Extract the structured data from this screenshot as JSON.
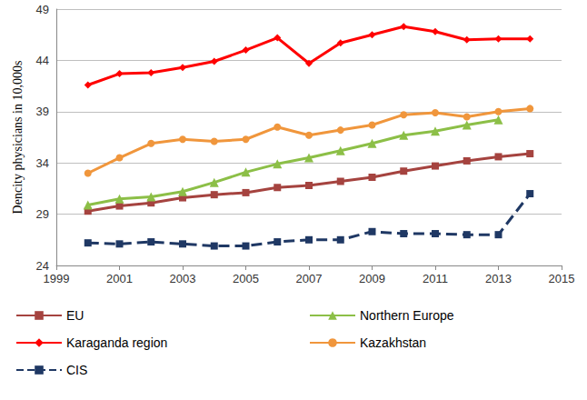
{
  "chart_data": {
    "type": "line",
    "y_label": "Dencity physicians in 10,000s",
    "x": [
      2000,
      2001,
      2002,
      2003,
      2004,
      2005,
      2006,
      2007,
      2008,
      2009,
      2010,
      2011,
      2012,
      2013,
      2014
    ],
    "xlim": [
      1999,
      2015
    ],
    "xticks": [
      1999,
      2001,
      2003,
      2005,
      2007,
      2009,
      2011,
      2013,
      2015
    ],
    "ylim": [
      24,
      49
    ],
    "yticks": [
      24,
      29,
      34,
      39,
      44,
      49
    ],
    "grid": true,
    "legend": "bottom",
    "series": [
      {
        "name": "EU",
        "color": "#a5433f",
        "marker": "square",
        "line_style": "solid",
        "values": [
          29.3,
          29.8,
          30.1,
          30.6,
          30.9,
          31.1,
          31.6,
          31.8,
          32.2,
          32.6,
          33.2,
          33.7,
          34.2,
          34.6,
          34.9
        ]
      },
      {
        "name": "Northern Europe",
        "color": "#8cbf47",
        "marker": "triangle",
        "line_style": "solid",
        "values": [
          29.9,
          30.5,
          30.7,
          31.2,
          32.1,
          33.1,
          33.9,
          34.5,
          35.2,
          35.9,
          36.7,
          37.1,
          37.7,
          38.2,
          null
        ]
      },
      {
        "name": "Karaganda region",
        "color": "#ff0000",
        "marker": "diamond",
        "line_style": "solid",
        "values": [
          41.6,
          42.7,
          42.8,
          43.3,
          43.9,
          45.0,
          46.2,
          43.7,
          45.7,
          46.5,
          47.3,
          46.8,
          46.0,
          46.1,
          46.1
        ]
      },
      {
        "name": "Kazakhstan",
        "color": "#f0963c",
        "marker": "circle",
        "line_style": "solid",
        "values": [
          33.0,
          34.5,
          35.9,
          36.3,
          36.1,
          36.3,
          37.5,
          36.7,
          37.2,
          37.7,
          38.7,
          38.9,
          38.5,
          39.0,
          39.3
        ]
      },
      {
        "name": "CIS",
        "color": "#1f3864",
        "marker": "square",
        "line_style": "dashed",
        "values": [
          26.2,
          26.1,
          26.3,
          26.1,
          25.9,
          25.9,
          26.3,
          26.5,
          26.5,
          27.3,
          27.1,
          27.1,
          27.0,
          27.0,
          31.0
        ]
      }
    ]
  }
}
